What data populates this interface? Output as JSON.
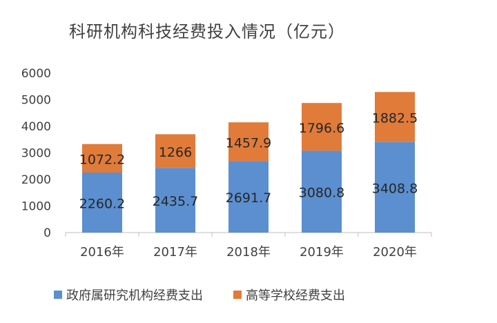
{
  "chart_data": {
    "type": "bar",
    "stacked": true,
    "title": "科研机构科技经费投入情况（亿元）",
    "categories": [
      "2016年",
      "2017年",
      "2018年",
      "2019年",
      "2020年"
    ],
    "series": [
      {
        "name": "政府属研究机构经费支出",
        "color": "#5b8fd0",
        "values": [
          2260.2,
          2435.7,
          2691.7,
          3080.8,
          3408.8
        ],
        "labels": [
          "2260.2",
          "2435.7",
          "2691.7",
          "3080.8",
          "3408.8"
        ]
      },
      {
        "name": "高等学校经费支出",
        "color": "#e07b39",
        "values": [
          1072.2,
          1266,
          1457.9,
          1796.6,
          1882.5
        ],
        "labels": [
          "1072.2",
          "1266",
          "1457.9",
          "1796.6",
          "1882.5"
        ]
      }
    ],
    "ylim": [
      0,
      6000
    ],
    "yticks": [
      "0",
      "1000",
      "2000",
      "3000",
      "4000",
      "5000",
      "6000"
    ],
    "grid": false,
    "legend_position": "bottom"
  }
}
